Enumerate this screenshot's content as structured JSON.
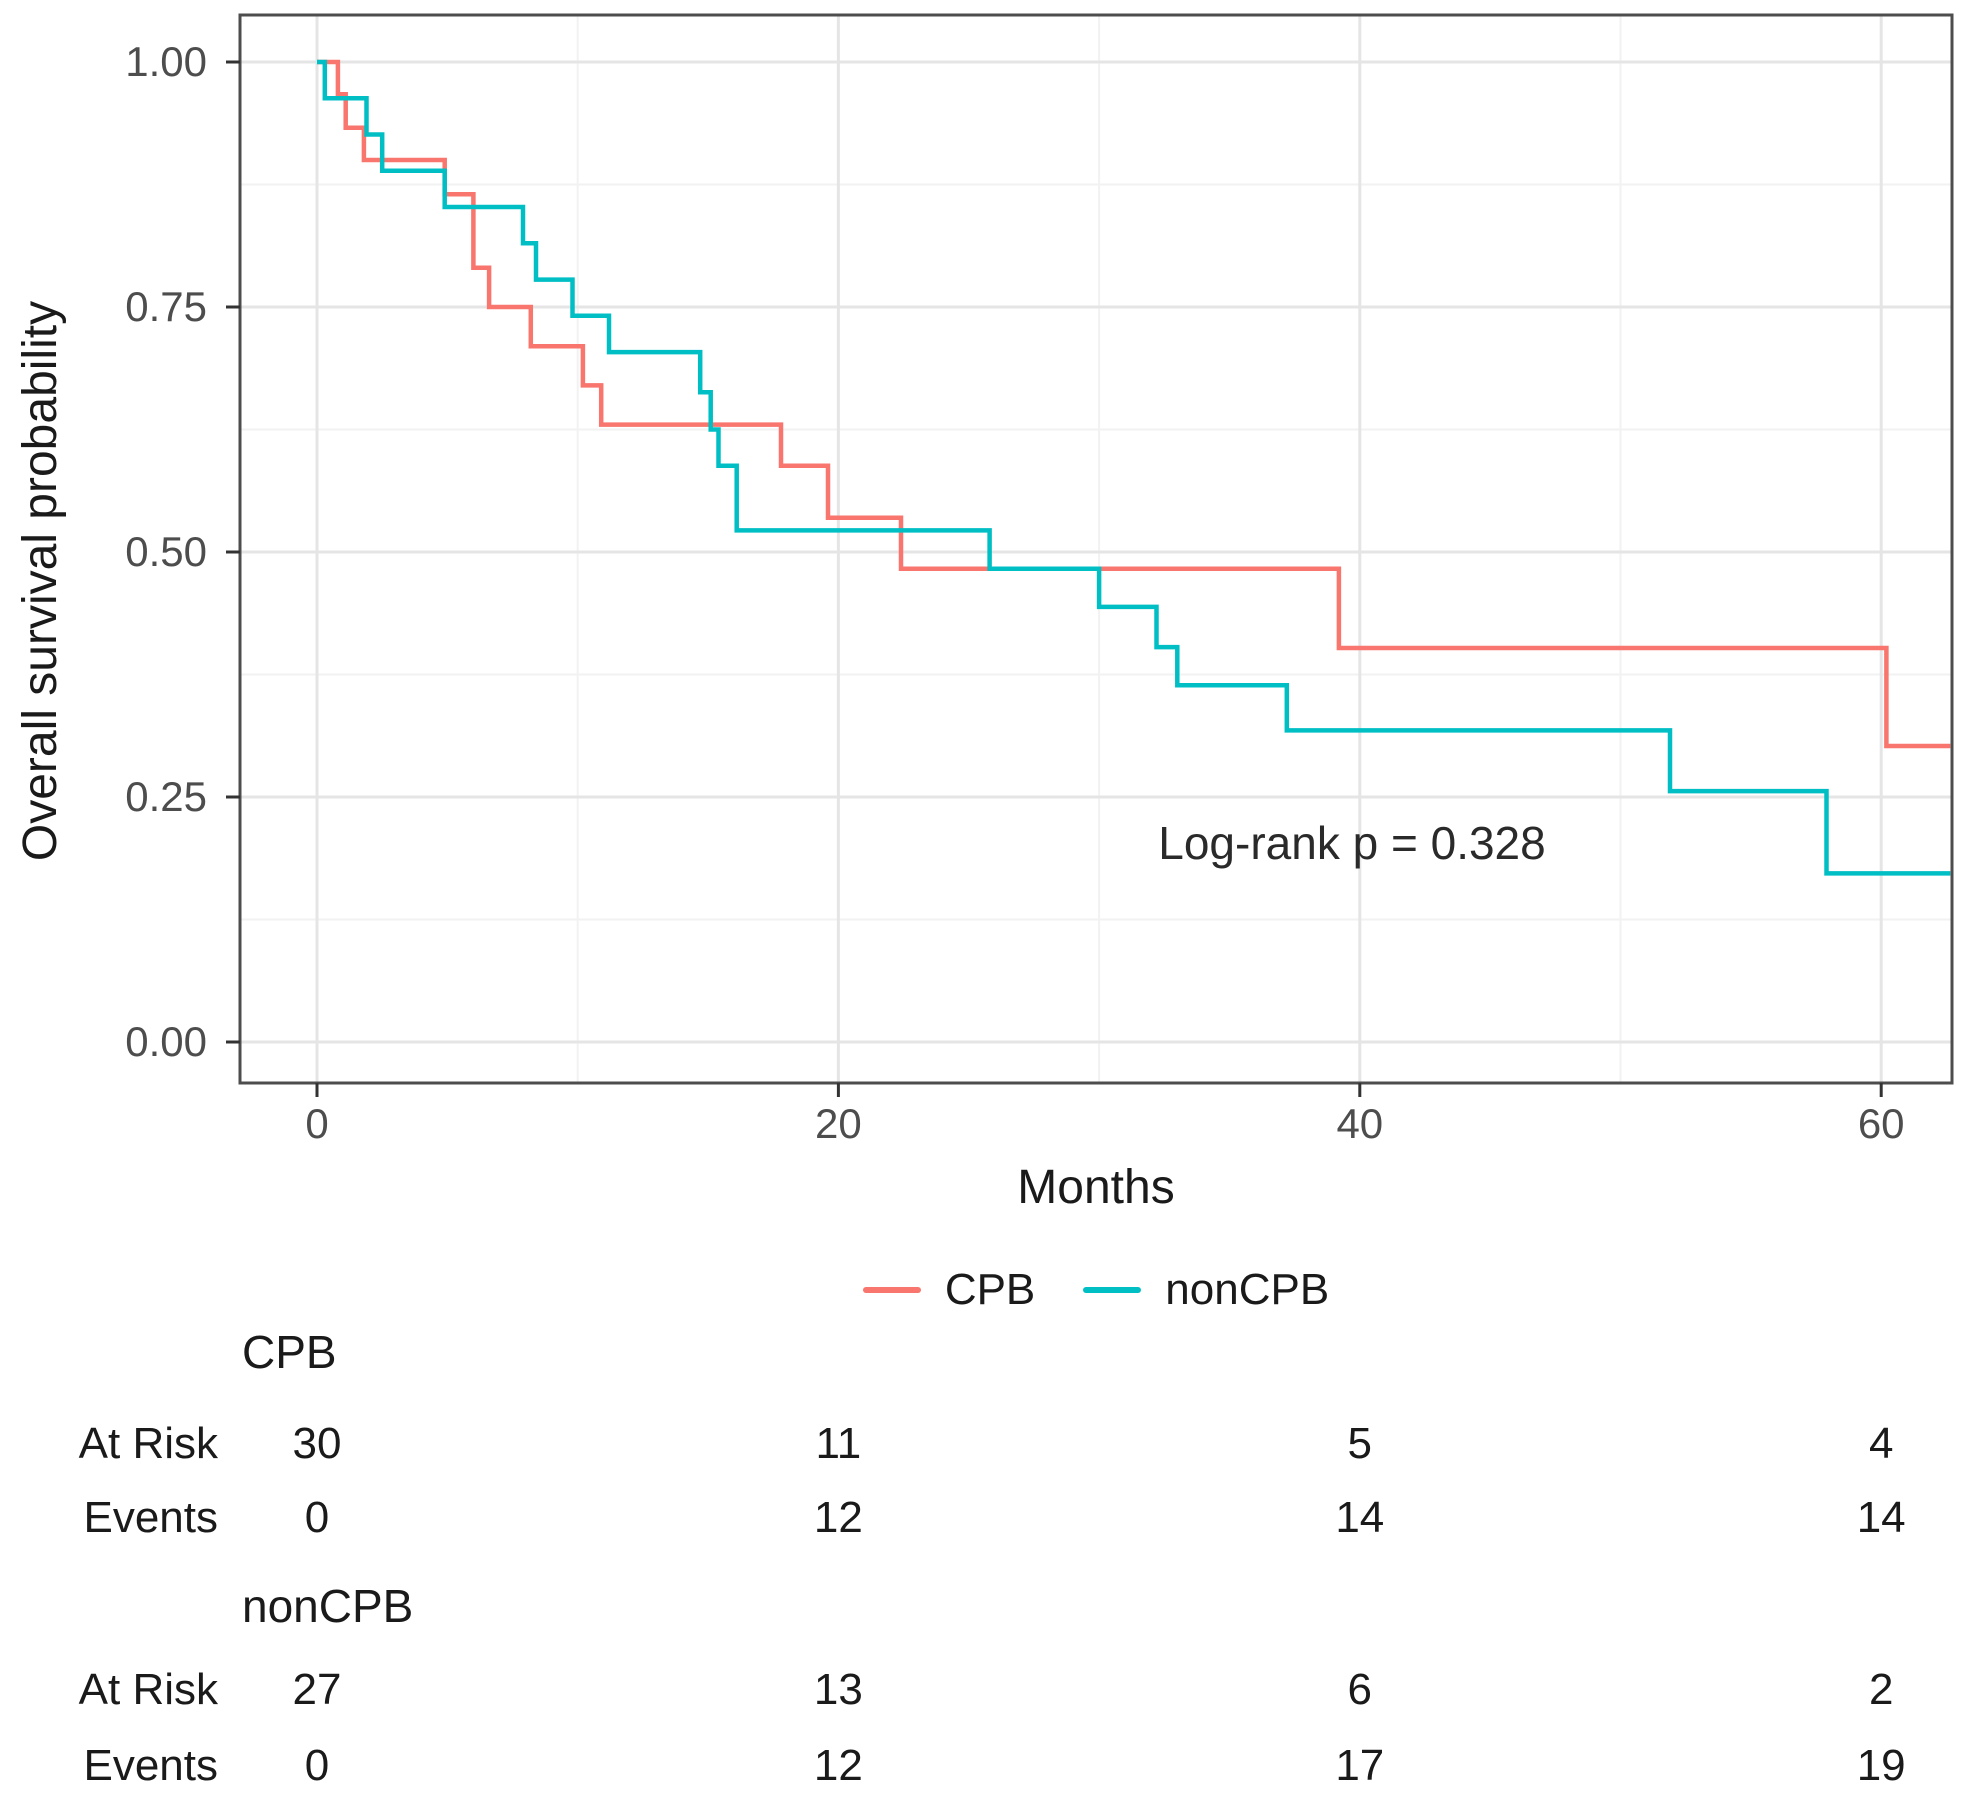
{
  "chart_data": {
    "type": "line",
    "subtype": "kaplan-meier-step-curves",
    "title": "",
    "xlabel": "Months",
    "ylabel": "Overall survival probability",
    "annotation": "Log-rank p = 0.328",
    "grid": true,
    "legend_position": "bottom",
    "xlim": [
      -2.95,
      62.65
    ],
    "ylim": [
      0,
      1
    ],
    "x_ticks": [
      0,
      20,
      40,
      60
    ],
    "x_minor": [
      10,
      30,
      50
    ],
    "y_tick_values": [
      0,
      0.25,
      0.5,
      0.75,
      1
    ],
    "y_ticks": [
      "0.00",
      "0.25",
      "0.50",
      "0.75",
      "1.00"
    ],
    "y_minor": [
      0.125,
      0.375,
      0.625,
      0.875
    ],
    "series": [
      {
        "name": "CPB",
        "color": "#F8766D",
        "steps": [
          [
            0,
            1.0
          ],
          [
            0.8,
            0.967
          ],
          [
            1.1,
            0.933
          ],
          [
            1.8,
            0.9
          ],
          [
            4.9,
            0.865
          ],
          [
            6.0,
            0.79
          ],
          [
            6.6,
            0.75
          ],
          [
            8.2,
            0.71
          ],
          [
            10.2,
            0.67
          ],
          [
            10.9,
            0.63
          ],
          [
            17.8,
            0.588
          ],
          [
            19.6,
            0.535
          ],
          [
            22.4,
            0.483
          ],
          [
            39.2,
            0.402
          ],
          [
            60.2,
            0.302
          ]
        ],
        "end_x": 62.65
      },
      {
        "name": "nonCPB",
        "color": "#00BFC4",
        "steps": [
          [
            0,
            1.0
          ],
          [
            0.3,
            0.963
          ],
          [
            1.9,
            0.926
          ],
          [
            2.5,
            0.889
          ],
          [
            4.9,
            0.852
          ],
          [
            7.9,
            0.815
          ],
          [
            8.4,
            0.778
          ],
          [
            9.8,
            0.741
          ],
          [
            11.2,
            0.704
          ],
          [
            14.7,
            0.663
          ],
          [
            15.1,
            0.625
          ],
          [
            15.4,
            0.588
          ],
          [
            16.1,
            0.522
          ],
          [
            25.8,
            0.483
          ],
          [
            30.0,
            0.444
          ],
          [
            32.2,
            0.403
          ],
          [
            33.0,
            0.364
          ],
          [
            37.2,
            0.318
          ],
          [
            51.9,
            0.256
          ],
          [
            57.9,
            0.172
          ]
        ],
        "end_x": 62.65
      }
    ]
  },
  "legend": {
    "items": [
      {
        "label": "CPB",
        "color": "#F8766D"
      },
      {
        "label": "nonCPB",
        "color": "#00BFC4"
      }
    ]
  },
  "risk_table": {
    "time_columns": [
      0,
      20,
      40,
      60
    ],
    "groups": [
      {
        "name": "CPB",
        "rows": [
          {
            "label": "At Risk",
            "values": [
              "30",
              "11",
              "5",
              "4"
            ]
          },
          {
            "label": "Events",
            "values": [
              "0",
              "12",
              "14",
              "14"
            ]
          }
        ]
      },
      {
        "name": "nonCPB",
        "rows": [
          {
            "label": "At Risk",
            "values": [
              "27",
              "13",
              "6",
              "2"
            ]
          },
          {
            "label": "Events",
            "values": [
              "0",
              "12",
              "17",
              "19"
            ]
          }
        ]
      }
    ]
  },
  "colors": {
    "cpb": "#F8766D",
    "noncpb": "#00BFC4",
    "panel_border": "#4d4d4d",
    "grid_major": "#e5e5e5",
    "grid_minor": "#f2f2f2",
    "tick_text": "#4d4d4d"
  }
}
